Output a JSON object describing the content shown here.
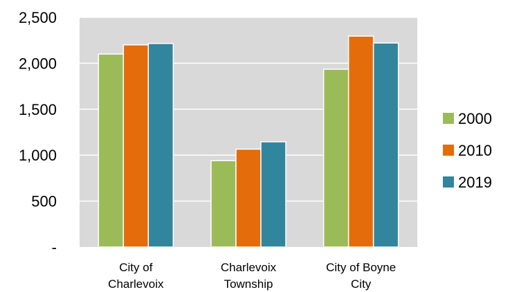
{
  "chart_data": {
    "type": "bar",
    "categories": [
      [
        "City of",
        "Charlevoix"
      ],
      [
        "Charlevoix",
        "Township"
      ],
      [
        "City of Boyne",
        "City"
      ]
    ],
    "series": [
      {
        "name": "2000",
        "color": "#9BBB59",
        "values": [
          2100,
          940,
          1935
        ]
      },
      {
        "name": "2010",
        "color": "#E46C0A",
        "values": [
          2200,
          1065,
          2295
        ]
      },
      {
        "name": "2019",
        "color": "#31859C",
        "values": [
          2215,
          1145,
          2220
        ]
      }
    ],
    "y_ticks": [
      {
        "value": 0,
        "label": "-"
      },
      {
        "value": 500,
        "label": "500"
      },
      {
        "value": 1000,
        "label": "1,000"
      },
      {
        "value": 1500,
        "label": "1,500"
      },
      {
        "value": 2000,
        "label": "2,000"
      },
      {
        "value": 2500,
        "label": "2,500"
      }
    ],
    "ylim": [
      0,
      2500
    ],
    "grid": true,
    "plot_background": "#D9D9D9",
    "legend_position": "right",
    "title": "",
    "xlabel": "",
    "ylabel": ""
  }
}
